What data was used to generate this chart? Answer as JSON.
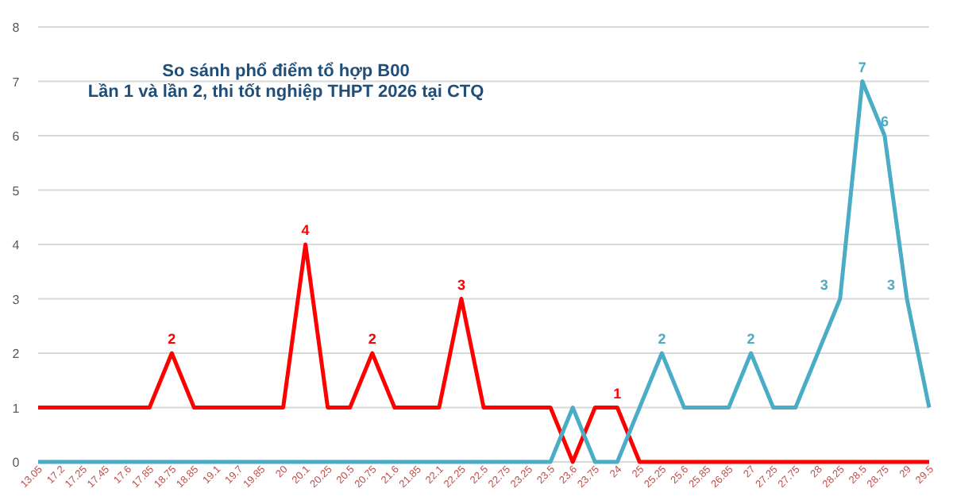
{
  "chart_data": {
    "type": "line",
    "title": "So sánh phổ điểm tổ hợp B00",
    "subtitle": "Lần 1 và lần 2, thi tốt nghiệp THPT 2026 tại CTQ",
    "categories": [
      "13.05",
      "17.2",
      "17.25",
      "17.45",
      "17.6",
      "17.85",
      "18.75",
      "18.85",
      "19.1",
      "19.7",
      "19.85",
      "20",
      "20.1",
      "20.25",
      "20.5",
      "20.75",
      "21.6",
      "21.85",
      "22.1",
      "22.25",
      "22.5",
      "22.75",
      "23.25",
      "23.5",
      "23.6",
      "23.75",
      "24",
      "25",
      "25.25",
      "25.6",
      "25.85",
      "26.85",
      "27",
      "27.25",
      "27.75",
      "28",
      "28.25",
      "28.5",
      "28.75",
      "29",
      "29.5"
    ],
    "series": [
      {
        "color": "#ff0000",
        "values": [
          1,
          1,
          1,
          1,
          1,
          1,
          2,
          1,
          1,
          1,
          1,
          1,
          4,
          1,
          1,
          2,
          1,
          1,
          1,
          3,
          1,
          1,
          1,
          1,
          0,
          1,
          1,
          0,
          0,
          0,
          0,
          0,
          0,
          0,
          0,
          0,
          0,
          0,
          0,
          0,
          0
        ],
        "value_labels": [
          null,
          null,
          null,
          null,
          null,
          null,
          "2",
          null,
          null,
          null,
          null,
          null,
          "4",
          null,
          null,
          "2",
          null,
          null,
          null,
          "3",
          null,
          null,
          null,
          null,
          null,
          null,
          "1",
          null,
          null,
          null,
          null,
          null,
          null,
          null,
          null,
          null,
          null,
          null,
          null,
          null,
          null
        ]
      },
      {
        "color": "#4bacc6",
        "values": [
          0,
          0,
          0,
          0,
          0,
          0,
          0,
          0,
          0,
          0,
          0,
          0,
          0,
          0,
          0,
          0,
          0,
          0,
          0,
          0,
          0,
          0,
          0,
          0,
          1,
          0,
          0,
          1,
          2,
          1,
          1,
          1,
          2,
          1,
          1,
          2,
          3,
          7,
          6,
          3,
          1
        ],
        "value_labels": [
          null,
          null,
          null,
          null,
          null,
          null,
          null,
          null,
          null,
          null,
          null,
          null,
          null,
          null,
          null,
          null,
          null,
          null,
          null,
          null,
          null,
          null,
          null,
          null,
          null,
          null,
          null,
          null,
          "2",
          null,
          null,
          null,
          "2",
          null,
          null,
          null,
          "3",
          "7",
          "6",
          "3",
          null
        ]
      }
    ],
    "ylim": [
      0,
      8
    ],
    "yticks": [
      0,
      1,
      2,
      3,
      4,
      5,
      6,
      7,
      8
    ],
    "grid": "y",
    "marker": "none",
    "line_style": "solid"
  }
}
